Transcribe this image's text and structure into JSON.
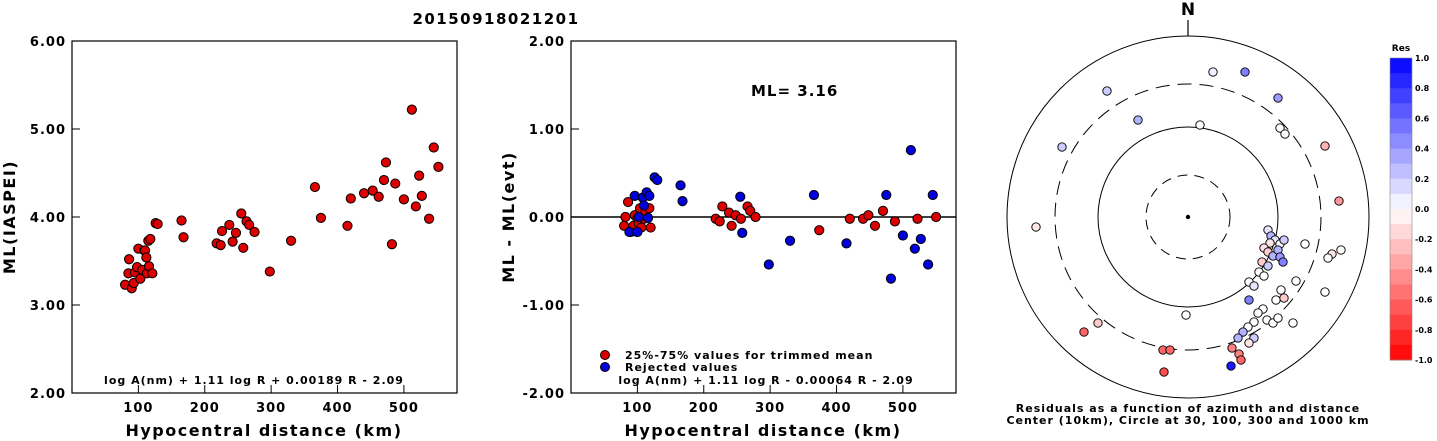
{
  "title": "20150918021201",
  "chart_data": [
    {
      "type": "scatter",
      "xlabel": "Hypocentral distance (km)",
      "ylabel": "ML(IASPEI)",
      "xlim": [
        0,
        580
      ],
      "ylim": [
        2.0,
        6.0
      ],
      "xticks": [
        "100",
        "200",
        "300",
        "400",
        "500"
      ],
      "yticks": [
        "2.00",
        "3.00",
        "4.00",
        "5.00",
        "6.00"
      ],
      "formula": "log A(nm) + 1.11 log R + 0.00189 R - 2.09",
      "series": [
        {
          "color": "#dd0000",
          "points": [
            [
              80,
              3.23
            ],
            [
              85,
              3.36
            ],
            [
              86,
              3.52
            ],
            [
              90,
              3.19
            ],
            [
              93,
              3.25
            ],
            [
              95,
              3.37
            ],
            [
              98,
              3.43
            ],
            [
              100,
              3.64
            ],
            [
              103,
              3.3
            ],
            [
              106,
              3.4
            ],
            [
              109,
              3.62
            ],
            [
              110,
              3.62
            ],
            [
              112,
              3.54
            ],
            [
              113,
              3.36
            ],
            [
              115,
              3.73
            ],
            [
              116,
              3.44
            ],
            [
              118,
              3.75
            ],
            [
              121,
              3.36
            ],
            [
              126,
              3.93
            ],
            [
              129,
              3.92
            ],
            [
              165,
              3.96
            ],
            [
              168,
              3.77
            ],
            [
              218,
              3.7
            ],
            [
              224,
              3.68
            ],
            [
              226,
              3.84
            ],
            [
              237,
              3.91
            ],
            [
              242,
              3.72
            ],
            [
              247,
              3.82
            ],
            [
              255,
              4.04
            ],
            [
              258,
              3.65
            ],
            [
              263,
              3.95
            ],
            [
              267,
              3.91
            ],
            [
              275,
              3.83
            ],
            [
              298,
              3.38
            ],
            [
              330,
              3.73
            ],
            [
              366,
              4.34
            ],
            [
              375,
              3.99
            ],
            [
              415,
              3.9
            ],
            [
              420,
              4.21
            ],
            [
              440,
              4.27
            ],
            [
              453,
              4.3
            ],
            [
              462,
              4.23
            ],
            [
              470,
              4.42
            ],
            [
              473,
              4.62
            ],
            [
              482,
              3.69
            ],
            [
              487,
              4.38
            ],
            [
              500,
              4.2
            ],
            [
              512,
              5.22
            ],
            [
              518,
              4.12
            ],
            [
              523,
              4.47
            ],
            [
              527,
              4.24
            ],
            [
              538,
              3.98
            ],
            [
              545,
              4.79
            ],
            [
              552,
              4.57
            ]
          ]
        }
      ]
    },
    {
      "type": "scatter",
      "xlabel": "Hypocentral distance (km)",
      "ylabel": "ML - ML(evt)",
      "xlim": [
        0,
        580
      ],
      "ylim": [
        -2.0,
        2.0
      ],
      "xticks": [
        "100",
        "200",
        "300",
        "400",
        "500"
      ],
      "yticks": [
        "-2.00",
        "-1.00",
        "0.00",
        "1.00",
        "2.00"
      ],
      "annotation": "ML= 3.16",
      "formula": "log A(nm) + 1.11 log R - 0.00064 R - 2.09",
      "series": [
        {
          "name": "25%-75% values for trimmed mean",
          "color": "#dd0000",
          "points": [
            [
              80,
              -0.1
            ],
            [
              82,
              0.0
            ],
            [
              86,
              0.17
            ],
            [
              90,
              -0.17
            ],
            [
              94,
              -0.1
            ],
            [
              96,
              0.02
            ],
            [
              100,
              -0.02
            ],
            [
              102,
              -0.07
            ],
            [
              104,
              0.1
            ],
            [
              106,
              -0.12
            ],
            [
              110,
              -0.02
            ],
            [
              112,
              0.05
            ],
            [
              118,
              0.1
            ],
            [
              120,
              -0.12
            ],
            [
              218,
              -0.02
            ],
            [
              224,
              -0.05
            ],
            [
              228,
              0.12
            ],
            [
              238,
              0.05
            ],
            [
              242,
              -0.1
            ],
            [
              248,
              0.02
            ],
            [
              256,
              -0.02
            ],
            [
              266,
              0.12
            ],
            [
              270,
              0.07
            ],
            [
              278,
              0.0
            ],
            [
              374,
              -0.15
            ],
            [
              420,
              -0.02
            ],
            [
              440,
              -0.02
            ],
            [
              448,
              0.02
            ],
            [
              458,
              -0.1
            ],
            [
              470,
              0.07
            ],
            [
              488,
              -0.05
            ],
            [
              522,
              -0.02
            ],
            [
              550,
              0.0
            ]
          ]
        },
        {
          "name": "Rejected values",
          "color": "#0000dd",
          "points": [
            [
              88,
              -0.17
            ],
            [
              96,
              0.24
            ],
            [
              100,
              -0.17
            ],
            [
              102,
              0.0
            ],
            [
              108,
              0.22
            ],
            [
              110,
              0.13
            ],
            [
              114,
              0.28
            ],
            [
              116,
              -0.01
            ],
            [
              118,
              0.24
            ],
            [
              126,
              0.45
            ],
            [
              130,
              0.42
            ],
            [
              165,
              0.36
            ],
            [
              168,
              0.18
            ],
            [
              255,
              0.23
            ],
            [
              258,
              -0.18
            ],
            [
              298,
              -0.54
            ],
            [
              330,
              -0.27
            ],
            [
              366,
              0.25
            ],
            [
              415,
              -0.3
            ],
            [
              475,
              0.25
            ],
            [
              482,
              -0.7
            ],
            [
              500,
              -0.21
            ],
            [
              512,
              0.76
            ],
            [
              518,
              -0.36
            ],
            [
              527,
              -0.25
            ],
            [
              538,
              -0.54
            ],
            [
              545,
              0.25
            ]
          ]
        }
      ]
    },
    {
      "type": "scatter",
      "north_label": "N",
      "caption_line1": "Residuals as a function of azimuth and distance",
      "caption_line2": "Center (10km), Circle at 30, 100, 300 and 1000 km",
      "colorbar": {
        "title": "Res",
        "ticks": [
          "1.0",
          "0.8",
          "0.6",
          "0.4",
          "0.2",
          "0.0",
          "-0.2",
          "-0.4",
          "-0.6",
          "-0.8",
          "-1.0"
        ],
        "min": -1.0,
        "max": 1.0
      },
      "stations": [
        [
          1213,
          72,
          0.05
        ],
        [
          1245,
          72,
          0.5
        ],
        [
          1107,
          91,
          0.2
        ],
        [
          1278,
          98,
          0.4
        ],
        [
          1200,
          125,
          0.0
        ],
        [
          1138,
          120,
          0.3
        ],
        [
          1280,
          128,
          0.0
        ],
        [
          1285,
          134,
          0.0
        ],
        [
          1325,
          146,
          -0.3
        ],
        [
          1062,
          147,
          0.2
        ],
        [
          1339,
          201,
          -0.4
        ],
        [
          1036,
          227,
          -0.1
        ],
        [
          1268,
          230,
          0.1
        ],
        [
          1271,
          236,
          0.3
        ],
        [
          1275,
          240,
          0.1
        ],
        [
          1280,
          244,
          0.0
        ],
        [
          1284,
          240,
          0.2
        ],
        [
          1270,
          243,
          -0.1
        ],
        [
          1264,
          248,
          -0.1
        ],
        [
          1268,
          252,
          -0.2
        ],
        [
          1273,
          256,
          0.3
        ],
        [
          1278,
          250,
          0.3
        ],
        [
          1280,
          257,
          0.4
        ],
        [
          1283,
          262,
          0.5
        ],
        [
          1262,
          262,
          -0.2
        ],
        [
          1268,
          266,
          0.2
        ],
        [
          1259,
          272,
          0.0
        ],
        [
          1264,
          276,
          0.0
        ],
        [
          1305,
          244,
          0.0
        ],
        [
          1341,
          250,
          0.0
        ],
        [
          1332,
          254,
          -0.1
        ],
        [
          1328,
          258,
          0.0
        ],
        [
          1249,
          282,
          0.0
        ],
        [
          1254,
          286,
          0.1
        ],
        [
          1296,
          281,
          0.0
        ],
        [
          1281,
          290,
          0.0
        ],
        [
          1249,
          300,
          0.5
        ],
        [
          1276,
          300,
          0.0
        ],
        [
          1284,
          298,
          -0.2
        ],
        [
          1325,
          292,
          0.0
        ],
        [
          1263,
          309,
          0.0
        ],
        [
          1258,
          313,
          0.0
        ],
        [
          1267,
          320,
          0.0
        ],
        [
          1273,
          323,
          0.0
        ],
        [
          1254,
          322,
          0.0
        ],
        [
          1248,
          327,
          0.0
        ],
        [
          1278,
          318,
          0.0
        ],
        [
          1293,
          323,
          0.0
        ],
        [
          1243,
          332,
          0.3
        ],
        [
          1238,
          338,
          0.3
        ],
        [
          1254,
          338,
          0.2
        ],
        [
          1249,
          343,
          -0.1
        ],
        [
          1186,
          315,
          0.0
        ],
        [
          1098,
          323,
          -0.2
        ],
        [
          1084,
          332,
          -0.6
        ],
        [
          1163,
          350,
          -0.6
        ],
        [
          1170,
          350,
          -0.6
        ],
        [
          1232,
          348,
          -0.5
        ],
        [
          1239,
          354,
          -0.5
        ],
        [
          1241,
          360,
          -0.6
        ],
        [
          1231,
          366,
          0.9
        ],
        [
          1164,
          372,
          -0.7
        ]
      ]
    }
  ]
}
